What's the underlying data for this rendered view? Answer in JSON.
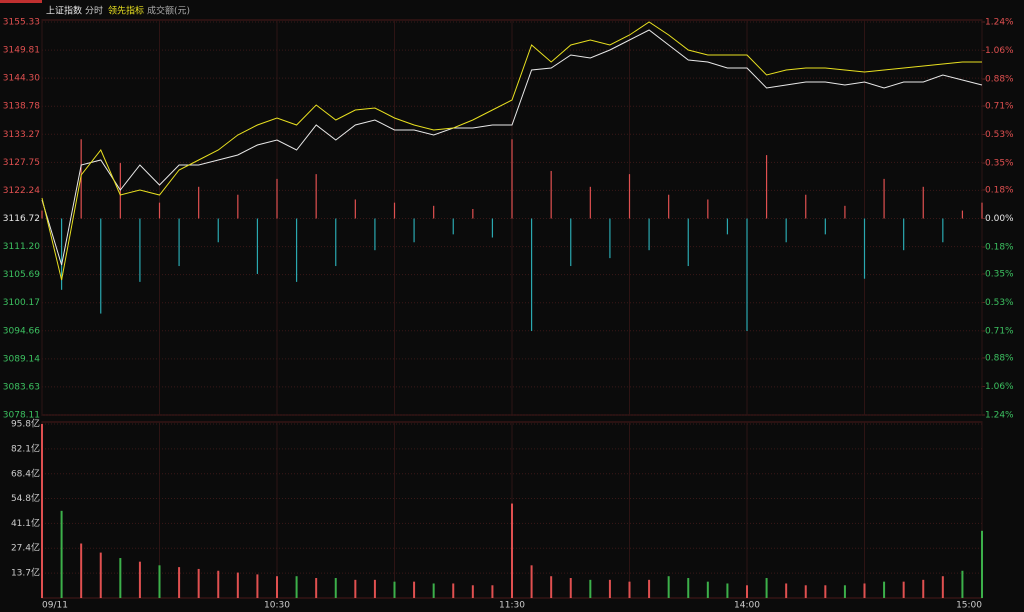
{
  "chart_data": [
    {
      "type": "line",
      "mode": "分时",
      "categories": [
        "09/11",
        null,
        null,
        null,
        null,
        null,
        null,
        null,
        null,
        null,
        null,
        null,
        "10:30",
        null,
        null,
        null,
        null,
        null,
        null,
        null,
        null,
        null,
        null,
        null,
        "11:30",
        null,
        null,
        null,
        null,
        null,
        null,
        null,
        null,
        null,
        null,
        null,
        "14:00",
        null,
        null,
        null,
        null,
        null,
        null,
        null,
        null,
        null,
        null,
        null,
        "15:00"
      ],
      "series": [
        {
          "name": "上证指数",
          "color": "#e8e8e8",
          "values": [
            3120.35,
            3107.58,
            3127.23,
            3128.21,
            3122.32,
            3127.23,
            3123.3,
            3127.23,
            3127.23,
            3128.21,
            3129.2,
            3131.16,
            3132.14,
            3130.18,
            3135.09,
            3132.14,
            3135.09,
            3136.07,
            3134.11,
            3134.11,
            3133.13,
            3134.5,
            3134.5,
            3135.09,
            3135.09,
            3145.9,
            3146.29,
            3148.85,
            3148.26,
            3149.83,
            3151.79,
            3153.76,
            3150.81,
            3147.86,
            3147.47,
            3146.29,
            3146.29,
            3142.36,
            3142.95,
            3143.54,
            3143.54,
            3142.95,
            3143.54,
            3142.36,
            3143.54,
            3143.54,
            3144.92,
            3143.93,
            3142.95
          ]
        },
        {
          "name": "领先指标",
          "color": "#e8e020",
          "values": [
            3120.75,
            3104.63,
            3125.27,
            3130.18,
            3121.34,
            3122.32,
            3121.34,
            3126.25,
            3128.21,
            3130.18,
            3133.13,
            3135.09,
            3136.47,
            3135.09,
            3139.02,
            3136.07,
            3138.04,
            3138.43,
            3136.47,
            3135.09,
            3134.11,
            3134.5,
            3136.07,
            3138.04,
            3140.0,
            3150.81,
            3147.47,
            3150.81,
            3151.79,
            3150.81,
            3152.78,
            3155.33,
            3152.78,
            3149.83,
            3148.85,
            3148.85,
            3148.85,
            3144.92,
            3145.9,
            3146.29,
            3146.29,
            3145.9,
            3145.51,
            3145.9,
            3146.29,
            3146.69,
            3147.08,
            3147.47,
            3147.47
          ]
        }
      ],
      "bars": [
        0.05,
        -0.45,
        0.5,
        -0.6,
        0.35,
        -0.4,
        0.1,
        -0.3,
        0.2,
        -0.15,
        0.15,
        -0.35,
        0.25,
        -0.4,
        0.28,
        -0.3,
        0.12,
        -0.2,
        0.1,
        -0.15,
        0.08,
        -0.1,
        0.06,
        -0.12,
        0.5,
        -0.71,
        0.3,
        -0.3,
        0.2,
        -0.25,
        0.28,
        -0.2,
        0.15,
        -0.3,
        0.12,
        -0.1,
        -0.71,
        0.4,
        -0.15,
        0.15,
        -0.1,
        0.08,
        -0.38,
        0.25,
        -0.2,
        0.2,
        -0.15,
        0.05,
        0.1
      ],
      "up_color": "#e05050",
      "down_color": "#2aa8b0",
      "ylim": [
        3078.11,
        3155.33
      ],
      "yticks": [
        3155.33,
        3149.81,
        {
          "value": 3144.3,
          "label": "3144.30"
        },
        3138.78,
        3133.27,
        3127.75,
        3122.24,
        3116.72,
        {
          "value": 3111.2,
          "label": "3111.20"
        },
        3105.69,
        3100.17,
        3094.66,
        3089.14,
        3083.63,
        3078.11
      ],
      "y2lim": [
        -1.24,
        1.24
      ],
      "y2ticks": [
        {
          "value": 1.24,
          "label": "1.24%"
        },
        {
          "value": 1.06,
          "label": "1.06%"
        },
        {
          "value": 0.88,
          "label": "0.88%"
        },
        {
          "value": 0.71,
          "label": "0.71%"
        },
        {
          "value": 0.53,
          "label": "0.53%"
        },
        {
          "value": 0.35,
          "label": "0.35%"
        },
        {
          "value": 0.18,
          "label": "0.18%"
        },
        {
          "value": 0,
          "label": "0.00%"
        },
        {
          "value": -0.18,
          "label": "0.18%"
        },
        {
          "value": -0.35,
          "label": "0.35%"
        },
        {
          "value": -0.53,
          "label": "0.53%"
        },
        {
          "value": -0.71,
          "label": "0.71%"
        },
        {
          "value": -0.88,
          "label": "0.88%"
        },
        {
          "value": -1.06,
          "label": "1.06%"
        },
        {
          "value": -1.24,
          "label": "1.24%"
        }
      ],
      "grid": true
    },
    {
      "type": "bar",
      "title": "成交额(元)",
      "values": [
        95.8,
        48,
        30,
        25,
        22,
        20,
        18,
        17,
        16,
        15,
        14,
        13,
        12,
        12,
        11,
        11,
        10,
        10,
        9,
        9,
        8,
        8,
        7,
        7,
        52,
        18,
        12,
        11,
        10,
        10,
        9,
        10,
        12,
        11,
        9,
        8,
        7,
        11,
        8,
        7,
        7,
        7,
        8,
        9,
        9,
        10,
        12,
        15,
        37
      ],
      "up_color": "#e05050",
      "down_color": "#3cb04a",
      "ylim": [
        0,
        95.8
      ],
      "yticks": [
        {
          "value": 95.8,
          "label": "95.8亿"
        },
        {
          "value": 82.1,
          "label": "82.1亿"
        },
        {
          "value": 68.4,
          "label": "68.4亿"
        },
        {
          "value": 54.8,
          "label": "54.8亿"
        },
        {
          "value": 41.1,
          "label": "41.1亿"
        },
        {
          "value": 27.4,
          "label": "27.4亿"
        },
        {
          "value": 13.7,
          "label": "13.7亿"
        }
      ],
      "grid": true
    }
  ]
}
